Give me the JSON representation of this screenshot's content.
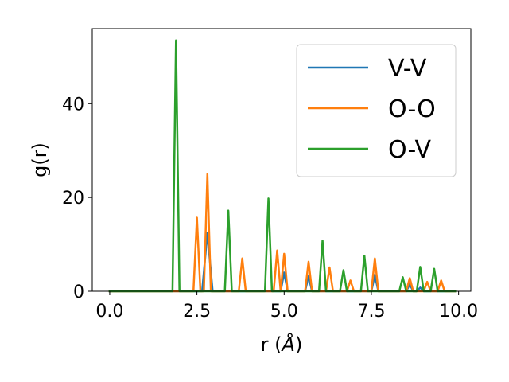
{
  "chart_data": {
    "type": "line",
    "title": "",
    "xlabel_main": "r (",
    "xlabel_unit": "Å",
    "xlabel_end": ")",
    "ylabel": "g(r)",
    "xlim": [
      -0.5,
      10.35
    ],
    "ylim": [
      0,
      56
    ],
    "xticks": [
      0.0,
      2.5,
      5.0,
      7.5,
      10.0
    ],
    "xtick_labels": [
      "0.0",
      "2.5",
      "5.0",
      "7.5",
      "10.0"
    ],
    "yticks": [
      0,
      20,
      40
    ],
    "ytick_labels": [
      "0",
      "20",
      "40"
    ],
    "grid": false,
    "legend_position": "top-right",
    "series": [
      {
        "name": "V-V",
        "color": "#1f77b4",
        "x": [
          0,
          2.65,
          2.8,
          2.95,
          4.9,
          5.0,
          5.1,
          5.6,
          5.7,
          5.8,
          7.5,
          7.6,
          7.7,
          8.5,
          8.6,
          8.7,
          8.8,
          8.9,
          9.0,
          9.9
        ],
        "y": [
          0,
          0,
          12.5,
          0,
          0,
          4,
          0,
          0,
          3.2,
          0,
          0,
          3.5,
          0,
          0,
          1.5,
          0,
          0,
          0.8,
          0,
          0
        ]
      },
      {
        "name": "O-O",
        "color": "#ff7f0e",
        "x": [
          0,
          2.4,
          2.5,
          2.6,
          2.7,
          2.8,
          2.9,
          3.7,
          3.8,
          3.9,
          4.7,
          4.8,
          4.9,
          5.0,
          5.1,
          5.6,
          5.7,
          5.8,
          6.2,
          6.3,
          6.4,
          6.8,
          6.9,
          7.0,
          7.5,
          7.6,
          7.7,
          8.5,
          8.6,
          8.7,
          9.0,
          9.1,
          9.2,
          9.4,
          9.5,
          9.6,
          9.9
        ],
        "y": [
          0,
          0,
          15.7,
          0,
          0,
          25,
          0,
          0,
          7,
          0,
          0,
          8.7,
          0,
          8,
          0,
          0,
          6.3,
          0,
          0,
          5.1,
          0,
          0,
          2.3,
          0,
          0,
          7,
          0,
          0,
          2.8,
          0,
          0,
          2,
          0,
          0,
          2.3,
          0,
          0
        ]
      },
      {
        "name": "O-V",
        "color": "#2ca02c",
        "x": [
          0,
          1.8,
          1.9,
          2.0,
          3.3,
          3.4,
          3.5,
          4.45,
          4.55,
          4.65,
          6.0,
          6.1,
          6.2,
          6.6,
          6.7,
          6.8,
          7.2,
          7.3,
          7.4,
          8.3,
          8.4,
          8.5,
          8.8,
          8.9,
          9.0,
          9.2,
          9.3,
          9.4,
          9.9
        ],
        "y": [
          0,
          0,
          53.5,
          0,
          0,
          17.2,
          0,
          0,
          19.8,
          0,
          0,
          10.8,
          0,
          0,
          4.5,
          0,
          0,
          7.6,
          0,
          0,
          3,
          0,
          0,
          5.2,
          0,
          0,
          4.8,
          0,
          0
        ]
      }
    ]
  }
}
